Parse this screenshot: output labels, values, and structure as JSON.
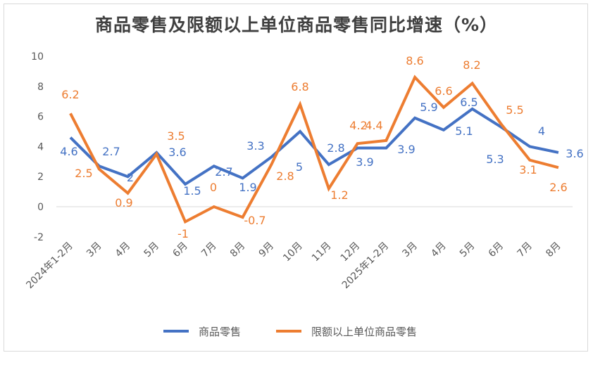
{
  "chart_data": {
    "type": "line",
    "title": "商品零售及限额以上单位商品零售同比增速（%）",
    "xlabel": "",
    "ylabel": "",
    "ylim": [
      -2,
      10
    ],
    "yticks": [
      -2,
      0,
      2,
      4,
      6,
      8,
      10
    ],
    "grid": false,
    "legend": "bottom",
    "categories": [
      "2024年1-2月",
      "3月",
      "4月",
      "5月",
      "6月",
      "7月",
      "8月",
      "9月",
      "10月",
      "11月",
      "12月",
      "2025年1-2月",
      "3月",
      "4月",
      "5月",
      "6月",
      "7月",
      "8月"
    ],
    "series": [
      {
        "name": "商品零售",
        "color": "#4472c4",
        "values": [
          4.6,
          2.7,
          2,
          3.6,
          1.5,
          2.7,
          1.9,
          3.3,
          5,
          2.8,
          3.9,
          3.9,
          5.9,
          5.1,
          6.5,
          5.3,
          4,
          3.6
        ]
      },
      {
        "name": "限额以上单位商品零售",
        "color": "#ed7d31",
        "values": [
          6.2,
          2.5,
          0.9,
          3.5,
          -1,
          0,
          -0.7,
          2.8,
          6.8,
          1.2,
          4.2,
          4.4,
          8.6,
          6.6,
          8.2,
          5.5,
          3.1,
          2.6
        ]
      }
    ]
  }
}
